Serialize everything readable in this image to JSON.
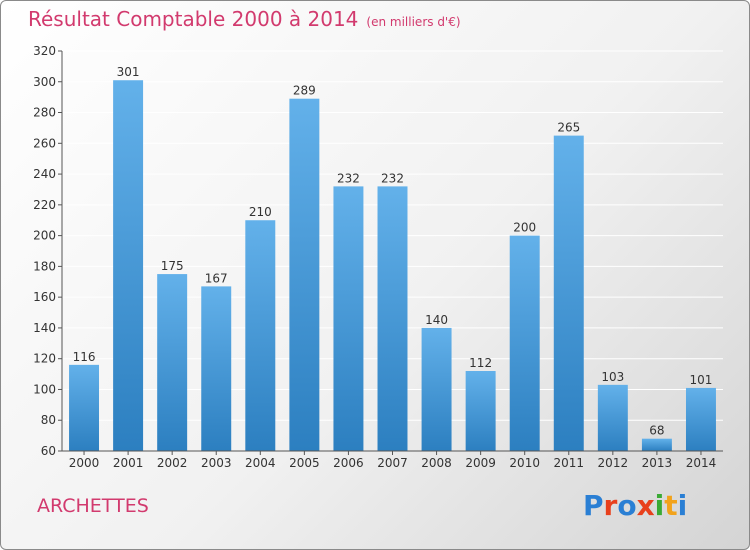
{
  "header": {
    "title": "Résultat Comptable 2000 à 2014",
    "subtitle": "(en milliers d'€)"
  },
  "footer": {
    "city": "ARCHETTES",
    "logo_text": "Proxiti",
    "logo_colors": [
      "#2a7fd4",
      "#e8401c",
      "#2a7fd4",
      "#e8401c",
      "#3aaa35",
      "#f2a31c",
      "#2a7fd4"
    ]
  },
  "colors": {
    "bar_top": "#63b1ea",
    "bar_bottom": "#2c7fc0",
    "title": "#d23a6e",
    "grid": "#ffffff"
  },
  "chart_data": {
    "type": "bar",
    "categories": [
      "2000",
      "2001",
      "2002",
      "2003",
      "2004",
      "2005",
      "2006",
      "2007",
      "2008",
      "2009",
      "2010",
      "2011",
      "2012",
      "2013",
      "2014"
    ],
    "values": [
      116,
      301,
      175,
      167,
      210,
      289,
      232,
      232,
      140,
      112,
      200,
      265,
      103,
      68,
      101
    ],
    "title": "Résultat Comptable 2000 à 2014",
    "xlabel": "",
    "ylabel": "",
    "ylim": [
      60,
      320
    ],
    "yticks": [
      60,
      80,
      100,
      120,
      140,
      160,
      180,
      200,
      220,
      240,
      260,
      280,
      300,
      320
    ],
    "grid": true,
    "data_labels": true
  }
}
